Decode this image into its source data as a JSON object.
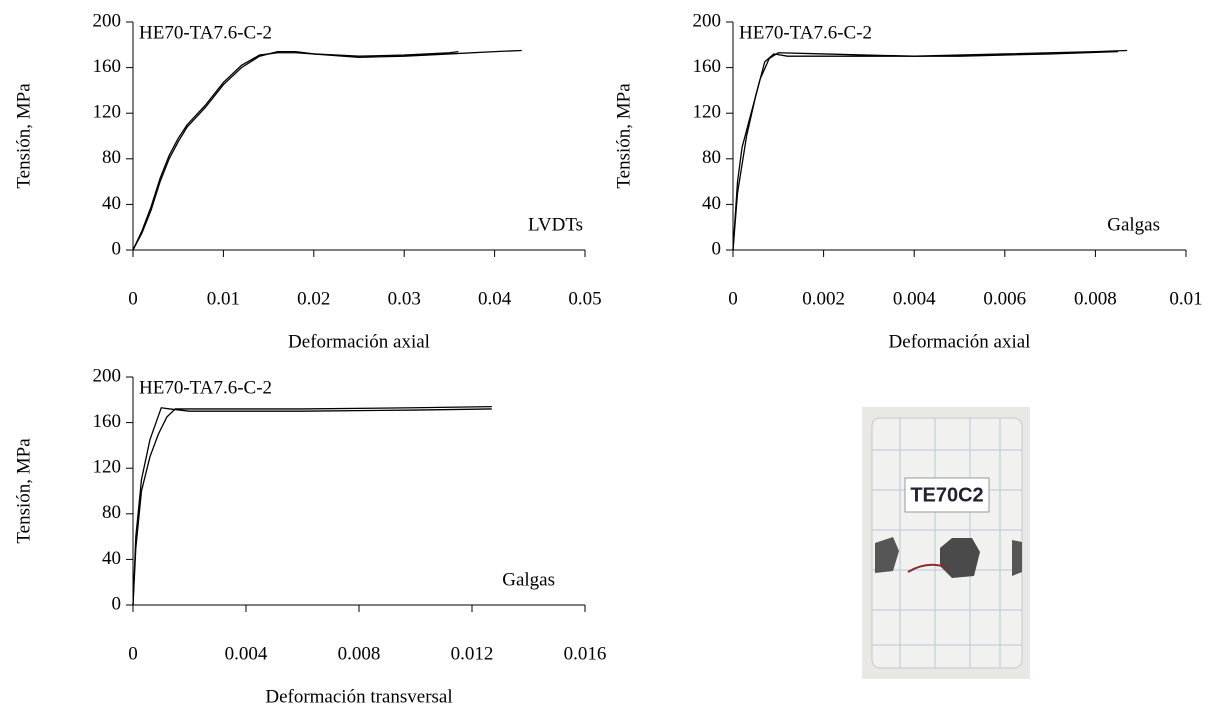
{
  "chart_data": [
    {
      "type": "line",
      "title": "HE70-TA7.6-C-2",
      "annotation": "LVDTs",
      "xlabel": "Deformación axial",
      "ylabel": "Tensión, MPa",
      "xlim": [
        0,
        0.05
      ],
      "xticks": [
        0,
        0.01,
        0.02,
        0.03,
        0.04,
        0.05
      ],
      "ylim": [
        0,
        200
      ],
      "yticks": [
        0,
        40,
        80,
        120,
        160,
        200
      ],
      "series": [
        {
          "color": "#000000",
          "x": [
            0,
            0.001,
            0.002,
            0.003,
            0.004,
            0.005,
            0.006,
            0.008,
            0.01,
            0.012,
            0.014,
            0.016,
            0.018,
            0.02,
            0.025,
            0.03,
            0.035,
            0.036
          ],
          "values": [
            0,
            15,
            35,
            60,
            80,
            95,
            108,
            125,
            145,
            160,
            170,
            174,
            174,
            172,
            170,
            171,
            173,
            174
          ]
        },
        {
          "color": "#000000",
          "x": [
            0,
            0.001,
            0.002,
            0.003,
            0.004,
            0.005,
            0.006,
            0.008,
            0.01,
            0.012,
            0.014,
            0.016,
            0.018,
            0.02,
            0.025,
            0.03,
            0.035,
            0.04,
            0.043
          ],
          "values": [
            0,
            17,
            38,
            63,
            83,
            98,
            110,
            127,
            147,
            162,
            171,
            173,
            173,
            172,
            169,
            170,
            172,
            174,
            175
          ]
        }
      ]
    },
    {
      "type": "line",
      "title": "HE70-TA7.6-C-2",
      "annotation": "Galgas",
      "xlabel": "Deformación axial",
      "ylabel": "Tensión, MPa",
      "xlim": [
        0,
        0.01
      ],
      "xticks": [
        0,
        0.002,
        0.004,
        0.006,
        0.008,
        0.01
      ],
      "ylim": [
        0,
        200
      ],
      "yticks": [
        0,
        40,
        80,
        120,
        160,
        200
      ],
      "series": [
        {
          "color": "#000000",
          "x": [
            0,
            0.0001,
            0.0002,
            0.0004,
            0.0006,
            0.0008,
            0.001,
            0.002,
            0.004,
            0.006,
            0.008,
            0.0087
          ],
          "values": [
            0,
            60,
            90,
            120,
            150,
            168,
            173,
            172,
            170,
            172,
            174,
            175
          ]
        },
        {
          "color": "#000000",
          "x": [
            0,
            0.0001,
            0.0003,
            0.0005,
            0.0007,
            0.0009,
            0.0012,
            0.003,
            0.005,
            0.007,
            0.0085
          ],
          "values": [
            0,
            50,
            100,
            135,
            165,
            172,
            170,
            170,
            170,
            172,
            174
          ]
        }
      ]
    },
    {
      "type": "line",
      "title": "HE70-TA7.6-C-2",
      "annotation": "Galgas",
      "xlabel": "Deformación transversal",
      "ylabel": "Tensión, MPa",
      "xlim": [
        0,
        0.016
      ],
      "xticks": [
        0,
        0.004,
        0.008,
        0.012,
        0.016
      ],
      "ylim": [
        0,
        200
      ],
      "yticks": [
        0,
        40,
        80,
        120,
        160,
        200
      ],
      "series": [
        {
          "color": "#000000",
          "x": [
            0,
            0.0001,
            0.0003,
            0.0006,
            0.0009,
            0.0012,
            0.0015,
            0.002,
            0.006,
            0.01,
            0.0127
          ],
          "values": [
            0,
            50,
            100,
            130,
            150,
            165,
            172,
            172,
            172,
            173,
            174
          ]
        },
        {
          "color": "#000000",
          "x": [
            0,
            0.0001,
            0.0003,
            0.0006,
            0.001,
            0.0013,
            0.002,
            0.006,
            0.01,
            0.0127
          ],
          "values": [
            0,
            60,
            110,
            145,
            173,
            172,
            170,
            170,
            171,
            172
          ]
        }
      ]
    }
  ],
  "photo": {
    "label": "TE70C2"
  }
}
